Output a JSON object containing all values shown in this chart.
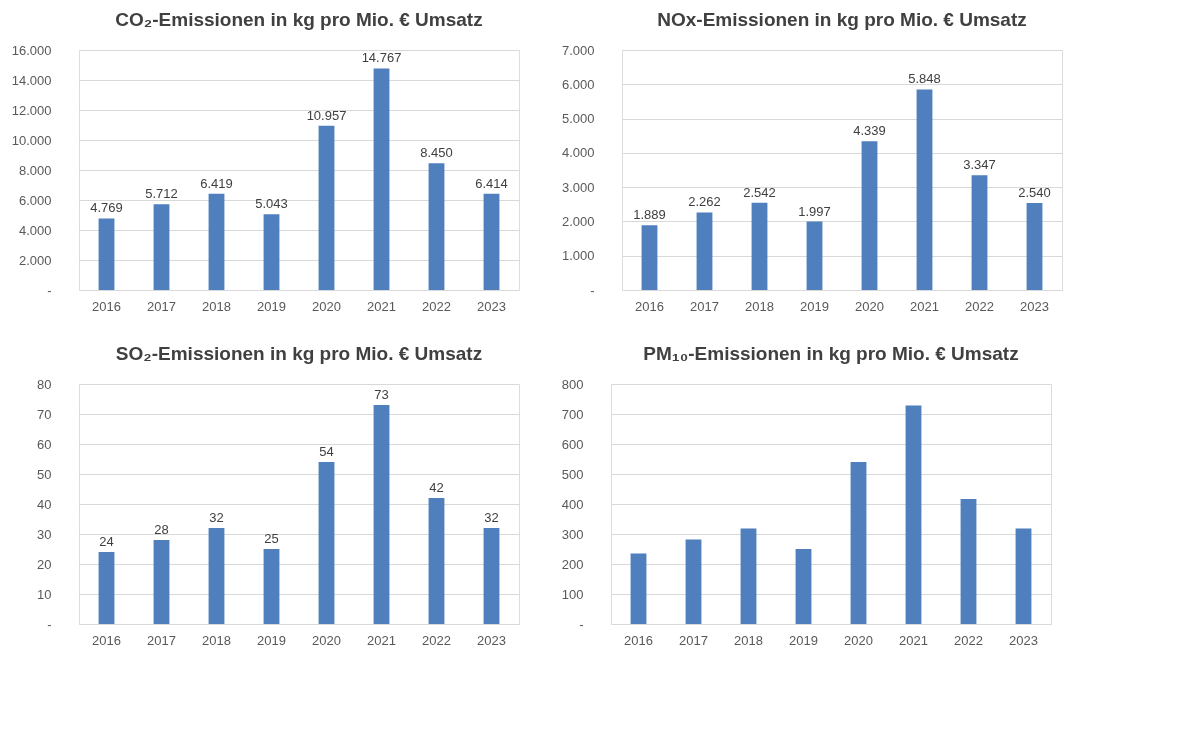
{
  "chart_data": [
    {
      "type": "bar",
      "title": "CO₂-Emissionen in kg pro Mio. € Umsatz",
      "categories": [
        "2016",
        "2017",
        "2018",
        "2019",
        "2020",
        "2021",
        "2022",
        "2023"
      ],
      "values": [
        4769,
        5712,
        6419,
        5043,
        10957,
        14767,
        8450,
        6414
      ],
      "value_labels": [
        "4.769",
        "5.712",
        "6.419",
        "5.043",
        "10.957",
        "14.767",
        "8.450",
        "6.414"
      ],
      "color": "#4f7fbc",
      "ylim": [
        0,
        16000
      ],
      "yticks": [
        {
          "value": 0,
          "label": "-"
        },
        {
          "value": 2000,
          "label": "2.000"
        },
        {
          "value": 4000,
          "label": "4.000"
        },
        {
          "value": 6000,
          "label": "6.000"
        },
        {
          "value": 8000,
          "label": "8.000"
        },
        {
          "value": 10000,
          "label": "10.000"
        },
        {
          "value": 12000,
          "label": "12.000"
        },
        {
          "value": 14000,
          "label": "14.000"
        },
        {
          "value": 16000,
          "label": "16.000"
        }
      ],
      "grid": "y"
    },
    {
      "type": "bar",
      "title": "NOx-Emissionen in kg pro Mio. € Umsatz",
      "categories": [
        "2016",
        "2017",
        "2018",
        "2019",
        "2020",
        "2021",
        "2022",
        "2023"
      ],
      "values": [
        1889,
        2262,
        2542,
        1997,
        4339,
        5848,
        3347,
        2540
      ],
      "value_labels": [
        "1.889",
        "2.262",
        "2.542",
        "1.997",
        "4.339",
        "5.848",
        "3.347",
        "2.540"
      ],
      "color": "#4f7fbc",
      "ylim": [
        0,
        7000
      ],
      "yticks": [
        {
          "value": 0,
          "label": "-"
        },
        {
          "value": 1000,
          "label": "1.000"
        },
        {
          "value": 2000,
          "label": "2.000"
        },
        {
          "value": 3000,
          "label": "3.000"
        },
        {
          "value": 4000,
          "label": "4.000"
        },
        {
          "value": 5000,
          "label": "5.000"
        },
        {
          "value": 6000,
          "label": "6.000"
        },
        {
          "value": 7000,
          "label": "7.000"
        }
      ],
      "grid": "y"
    },
    {
      "type": "bar",
      "title": "SO₂-Emissionen in kg pro Mio. € Umsatz",
      "categories": [
        "2016",
        "2017",
        "2018",
        "2019",
        "2020",
        "2021",
        "2022",
        "2023"
      ],
      "values": [
        24,
        28,
        32,
        25,
        54,
        73,
        42,
        32
      ],
      "data_labels": true,
      "color": "#4f7fbc",
      "ylim": [
        0,
        80
      ],
      "yticks": [
        {
          "value": 0,
          "label": "-"
        },
        10,
        20,
        30,
        40,
        50,
        60,
        70,
        80
      ],
      "grid": "y"
    },
    {
      "type": "bar",
      "title": "PM₁₀-Emissionen in kg pro Mio. € Umsatz",
      "categories": [
        "2016",
        "2017",
        "2018",
        "2019",
        "2020",
        "2021",
        "2022",
        "2023"
      ],
      "values": [
        235,
        282,
        318,
        250,
        540,
        728,
        417,
        318
      ],
      "color": "#4f7fbc",
      "ylim": [
        0,
        800
      ],
      "yticks": [
        {
          "value": 0,
          "label": "-"
        },
        100,
        200,
        300,
        400,
        500,
        600,
        700,
        800
      ],
      "grid": "y"
    }
  ]
}
